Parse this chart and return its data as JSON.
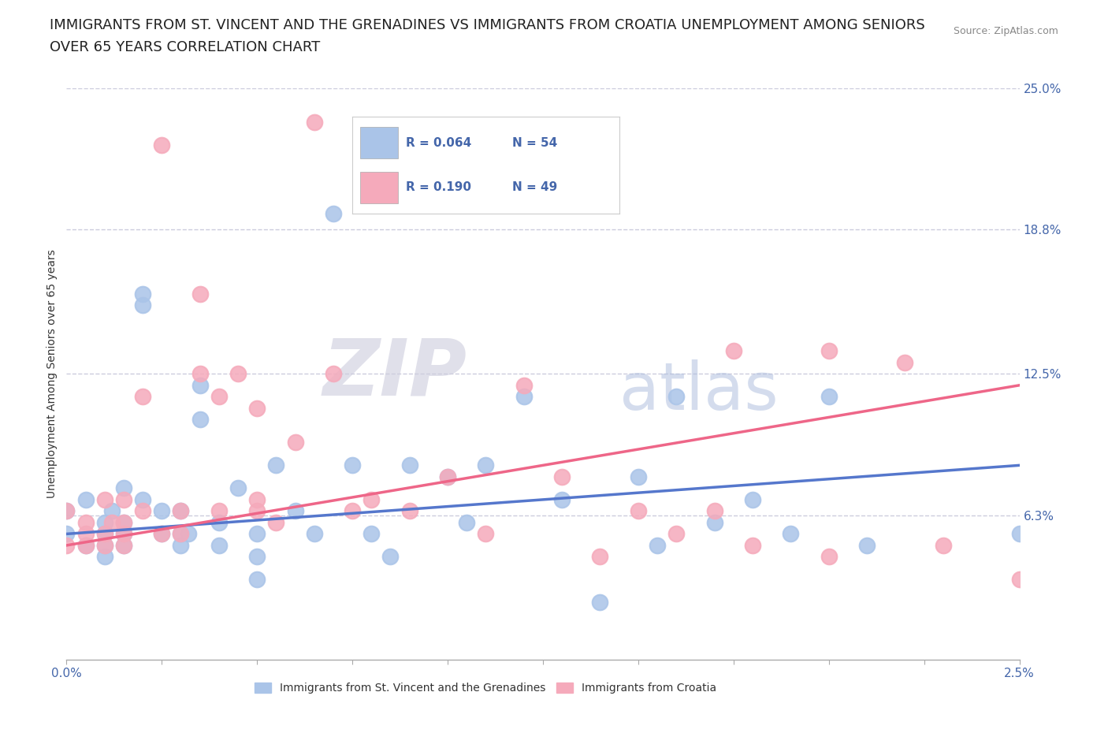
{
  "title_line1": "IMMIGRANTS FROM ST. VINCENT AND THE GRENADINES VS IMMIGRANTS FROM CROATIA UNEMPLOYMENT AMONG SENIORS",
  "title_line2": "OVER 65 YEARS CORRELATION CHART",
  "source_text": "Source: ZipAtlas.com",
  "ylabel": "Unemployment Among Seniors over 65 years",
  "xlim": [
    0.0,
    2.5
  ],
  "ylim": [
    0.0,
    25.0
  ],
  "xticks": [
    0.0,
    0.25,
    0.5,
    0.75,
    1.0,
    1.25,
    1.5,
    1.75,
    2.0,
    2.25,
    2.5
  ],
  "yticks_right": [
    6.3,
    12.5,
    18.8,
    25.0
  ],
  "yticklabels_right": [
    "6.3%",
    "12.5%",
    "18.8%",
    "25.0%"
  ],
  "blue_color": "#aac4e8",
  "pink_color": "#f5aabb",
  "blue_line_color": "#5577cc",
  "pink_line_color": "#ee6688",
  "legend_R1": "0.064",
  "legend_N1": "54",
  "legend_R2": "0.190",
  "legend_N2": "49",
  "legend_label1": "Immigrants from St. Vincent and the Grenadines",
  "legend_label2": "Immigrants from Croatia",
  "watermark_zip": "ZIP",
  "watermark_atlas": "atlas",
  "blue_scatter_x": [
    0.0,
    0.0,
    0.05,
    0.05,
    0.1,
    0.1,
    0.1,
    0.1,
    0.12,
    0.15,
    0.15,
    0.15,
    0.15,
    0.2,
    0.2,
    0.2,
    0.25,
    0.25,
    0.3,
    0.3,
    0.3,
    0.32,
    0.35,
    0.35,
    0.4,
    0.4,
    0.45,
    0.5,
    0.5,
    0.5,
    0.55,
    0.6,
    0.65,
    0.7,
    0.75,
    0.8,
    0.85,
    0.9,
    1.0,
    1.0,
    1.05,
    1.1,
    1.2,
    1.3,
    1.4,
    1.5,
    1.55,
    1.6,
    1.7,
    1.8,
    1.9,
    2.0,
    2.1,
    2.5
  ],
  "blue_scatter_y": [
    5.5,
    6.5,
    5.0,
    7.0,
    5.5,
    6.0,
    5.0,
    4.5,
    6.5,
    5.5,
    7.5,
    5.0,
    6.0,
    16.0,
    15.5,
    7.0,
    5.5,
    6.5,
    5.0,
    6.5,
    5.5,
    5.5,
    12.0,
    10.5,
    5.0,
    6.0,
    7.5,
    5.5,
    4.5,
    3.5,
    8.5,
    6.5,
    5.5,
    19.5,
    8.5,
    5.5,
    4.5,
    8.5,
    8.0,
    20.0,
    6.0,
    8.5,
    11.5,
    7.0,
    2.5,
    8.0,
    5.0,
    11.5,
    6.0,
    7.0,
    5.5,
    11.5,
    5.0,
    5.5
  ],
  "pink_scatter_x": [
    0.0,
    0.0,
    0.05,
    0.05,
    0.05,
    0.1,
    0.1,
    0.1,
    0.12,
    0.15,
    0.15,
    0.15,
    0.15,
    0.2,
    0.2,
    0.25,
    0.25,
    0.3,
    0.3,
    0.35,
    0.35,
    0.4,
    0.4,
    0.45,
    0.5,
    0.5,
    0.5,
    0.55,
    0.6,
    0.65,
    0.7,
    0.75,
    0.8,
    0.9,
    1.0,
    1.1,
    1.2,
    1.3,
    1.4,
    1.5,
    1.6,
    1.7,
    1.75,
    1.8,
    2.0,
    2.0,
    2.2,
    2.3,
    2.5
  ],
  "pink_scatter_y": [
    5.0,
    6.5,
    5.5,
    6.0,
    5.0,
    5.5,
    7.0,
    5.0,
    6.0,
    5.5,
    7.0,
    5.0,
    6.0,
    11.5,
    6.5,
    22.5,
    5.5,
    6.5,
    5.5,
    16.0,
    12.5,
    11.5,
    6.5,
    12.5,
    6.5,
    11.0,
    7.0,
    6.0,
    9.5,
    23.5,
    12.5,
    6.5,
    7.0,
    6.5,
    8.0,
    5.5,
    12.0,
    8.0,
    4.5,
    6.5,
    5.5,
    6.5,
    13.5,
    5.0,
    13.5,
    4.5,
    13.0,
    5.0,
    3.5
  ],
  "blue_trend_x": [
    0.0,
    2.5
  ],
  "blue_trend_y": [
    5.5,
    8.5
  ],
  "pink_trend_x": [
    0.0,
    2.5
  ],
  "pink_trend_y": [
    5.0,
    12.0
  ],
  "bg_color": "#ffffff",
  "grid_color": "#ccccdd",
  "title_fontsize": 13,
  "tick_color": "#4466aa"
}
